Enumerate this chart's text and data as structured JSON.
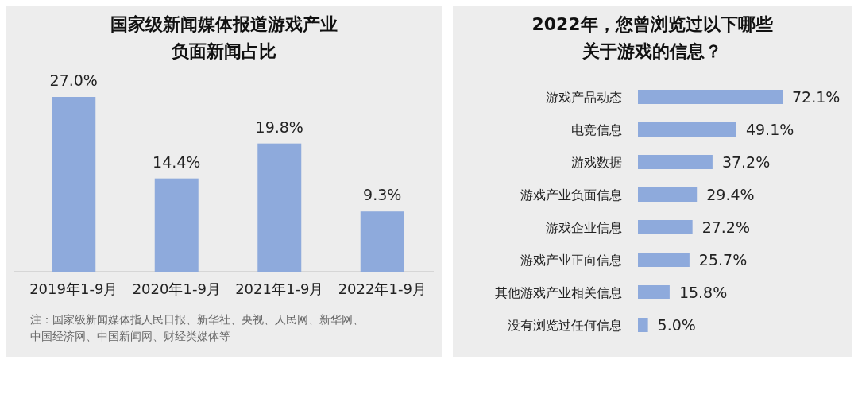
{
  "chart_data": [
    {
      "type": "bar",
      "title": "国家级新闻媒体报道游戏产业负面新闻占比",
      "categories": [
        "2019年1-9月",
        "2020年1-9月",
        "2021年1-9月",
        "2022年1-9月"
      ],
      "values": [
        27.0,
        14.4,
        19.8,
        9.3
      ],
      "value_labels": [
        "27.0%",
        "14.4%",
        "19.8%",
        "9.3%"
      ],
      "color": "#8eaadc",
      "annotations": [
        "注：国家级新闻媒体指人民日报、新华社、央视、人民网、新华网、中国经济网、中国新闻网、财经类媒体等"
      ]
    },
    {
      "type": "bar",
      "orientation": "horizontal",
      "title": "2022年，您曾浏览过以下哪些关于游戏的信息？",
      "categories": [
        "游戏产品动态",
        "电竞信息",
        "游戏数据",
        "游戏产业负面信息",
        "游戏企业信息",
        "游戏产业正向信息",
        "其他游戏产业相关信息",
        "没有浏览过任何信息"
      ],
      "values": [
        72.1,
        49.1,
        37.2,
        29.4,
        27.2,
        25.7,
        15.8,
        5.0
      ],
      "value_labels": [
        "72.1%",
        "49.1%",
        "37.2%",
        "29.4%",
        "27.2%",
        "25.7%",
        "15.8%",
        "5.0%"
      ],
      "color": "#8eaadc"
    }
  ]
}
